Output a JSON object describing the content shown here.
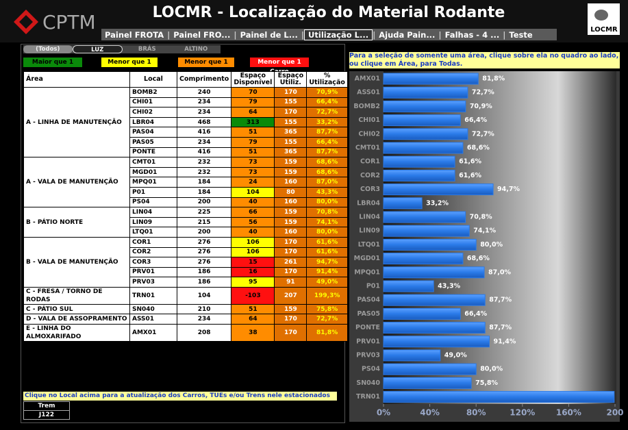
{
  "header": {
    "logo": "CPTM",
    "title": "LOCMR - Localização do Material Rodante",
    "logo_right": "LOCMR"
  },
  "tabs": [
    "Painel FROTA",
    "Painel FRO...",
    "Painel de L...",
    "Utilização L...",
    "Ajuda Pain...",
    "Falhas - 4 ...",
    "Teste"
  ],
  "active_tab": 3,
  "filters": [
    "(Todos)",
    "LUZ",
    "BRÁS",
    "ALTINO"
  ],
  "legend": [
    {
      "label": "Maior que 1 Trem",
      "color": "#0a8a0a"
    },
    {
      "label": "Menor que 1 Trem",
      "color": "#ffff00"
    },
    {
      "label": "Menor que 1 TUE",
      "color": "#ff8c00"
    },
    {
      "label": "Menor que 1 Carro",
      "color": "#ff1010"
    }
  ],
  "table": {
    "columns": [
      "Área",
      "Local",
      "Comprimento",
      "Espaço Disponível",
      "Espaço Utiliz.",
      "% Utilização"
    ],
    "groups": [
      {
        "area": "A - LINHA DE MANUTENÇÃO",
        "rows": [
          {
            "local": "BOMB2",
            "comprimento": 240,
            "disponivel": 70,
            "utilizado": 170,
            "utilizacao": "70,9%",
            "cor": "#ff8c00"
          },
          {
            "local": "CHI01",
            "comprimento": 234,
            "disponivel": 79,
            "utilizado": 155,
            "utilizacao": "66,4%",
            "cor": "#ff8c00"
          },
          {
            "local": "CHI02",
            "comprimento": 234,
            "disponivel": 64,
            "utilizado": 170,
            "utilizacao": "72,7%",
            "cor": "#ff8c00"
          },
          {
            "local": "LBR04",
            "comprimento": 468,
            "disponivel": 313,
            "utilizado": 155,
            "utilizacao": "33,2%",
            "cor": "#0a8a0a"
          },
          {
            "local": "PAS04",
            "comprimento": 416,
            "disponivel": 51,
            "utilizado": 365,
            "utilizacao": "87,7%",
            "cor": "#ff8c00"
          },
          {
            "local": "PAS05",
            "comprimento": 234,
            "disponivel": 79,
            "utilizado": 155,
            "utilizacao": "66,4%",
            "cor": "#ff8c00"
          },
          {
            "local": "PONTE",
            "comprimento": 416,
            "disponivel": 51,
            "utilizado": 365,
            "utilizacao": "87,7%",
            "cor": "#ff8c00"
          }
        ]
      },
      {
        "area": "A - VALA DE MANUTENÇÃO",
        "rows": [
          {
            "local": "CMT01",
            "comprimento": 232,
            "disponivel": 73,
            "utilizado": 159,
            "utilizacao": "68,6%",
            "cor": "#ff8c00"
          },
          {
            "local": "MGD01",
            "comprimento": 232,
            "disponivel": 73,
            "utilizado": 159,
            "utilizacao": "68,6%",
            "cor": "#ff8c00"
          },
          {
            "local": "MPQ01",
            "comprimento": 184,
            "disponivel": 24,
            "utilizado": 160,
            "utilizacao": "87,0%",
            "cor": "#ff8c00"
          },
          {
            "local": "P01",
            "comprimento": 184,
            "disponivel": 104,
            "utilizado": 80,
            "utilizacao": "43,3%",
            "cor": "#ffff00"
          },
          {
            "local": "PS04",
            "comprimento": 200,
            "disponivel": 40,
            "utilizado": 160,
            "utilizacao": "80,0%",
            "cor": "#ff8c00"
          }
        ]
      },
      {
        "area": "B - PÁTIO NORTE",
        "rows": [
          {
            "local": "LIN04",
            "comprimento": 225,
            "disponivel": 66,
            "utilizado": 159,
            "utilizacao": "70,8%",
            "cor": "#ff8c00"
          },
          {
            "local": "LIN09",
            "comprimento": 215,
            "disponivel": 56,
            "utilizado": 159,
            "utilizacao": "74,1%",
            "cor": "#ff8c00"
          },
          {
            "local": "LTQ01",
            "comprimento": 200,
            "disponivel": 40,
            "utilizado": 160,
            "utilizacao": "80,0%",
            "cor": "#ff8c00"
          }
        ]
      },
      {
        "area": "B - VALA DE MANUTENÇÃO",
        "rows": [
          {
            "local": "COR1",
            "comprimento": 276,
            "disponivel": 106,
            "utilizado": 170,
            "utilizacao": "61,6%",
            "cor": "#ffff00"
          },
          {
            "local": "COR2",
            "comprimento": 276,
            "disponivel": 106,
            "utilizado": 170,
            "utilizacao": "61,6%",
            "cor": "#ffff00"
          },
          {
            "local": "COR3",
            "comprimento": 276,
            "disponivel": 15,
            "utilizado": 261,
            "utilizacao": "94,7%",
            "cor": "#ff1010"
          },
          {
            "local": "PRV01",
            "comprimento": 186,
            "disponivel": 16,
            "utilizado": 170,
            "utilizacao": "91,4%",
            "cor": "#ff1010"
          },
          {
            "local": "PRV03",
            "comprimento": 186,
            "disponivel": 95,
            "utilizado": 91,
            "utilizacao": "49,0%",
            "cor": "#ffff00"
          }
        ]
      },
      {
        "area": "C - FRESA / TORNO DE RODAS",
        "rows": [
          {
            "local": "TRN01",
            "comprimento": 104,
            "disponivel": -103,
            "utilizado": 207,
            "utilizacao": "199,3%",
            "cor": "#ff1010"
          }
        ]
      },
      {
        "area": "C - PÁTIO SUL",
        "rows": [
          {
            "local": "SN040",
            "comprimento": 210,
            "disponivel": 51,
            "utilizado": 159,
            "utilizacao": "75,8%",
            "cor": "#ff8c00"
          }
        ]
      },
      {
        "area": "D - VALA DE ASSOPRAMENTO",
        "rows": [
          {
            "local": "ASS01",
            "comprimento": 234,
            "disponivel": 64,
            "utilizado": 170,
            "utilizacao": "72,7%",
            "cor": "#ff8c00"
          }
        ]
      },
      {
        "area": "E - LINHA DO ALMOXARIFADO",
        "rows": [
          {
            "local": "AMX01",
            "comprimento": 208,
            "disponivel": 38,
            "utilizado": 170,
            "utilizacao": "81,8%",
            "cor": "#ff8c00"
          }
        ]
      }
    ]
  },
  "footer": {
    "note": "Clique no Local acima para a atualização dos Carros, TUEs e/ou Trens nele estacionados",
    "trem_header": "Trem",
    "trem": "J122"
  },
  "chart_note": "Para a seleção de somente uma área, clique sobre ela no quadro ao lado, ou clique em Área, para Todas.",
  "chart_data": {
    "type": "bar",
    "orientation": "horizontal",
    "color": "#2a7ae8",
    "categories": [
      "AMX01",
      "ASS01",
      "BOMB2",
      "CHI01",
      "CHI02",
      "CMT01",
      "COR1",
      "COR2",
      "COR3",
      "LBR04",
      "LIN04",
      "LIN09",
      "LTQ01",
      "MGD01",
      "MPQ01",
      "P01",
      "PAS04",
      "PAS05",
      "PONTE",
      "PRV01",
      "PRV03",
      "PS04",
      "SN040",
      "TRN01"
    ],
    "values": [
      81.8,
      72.7,
      70.9,
      66.4,
      72.7,
      68.6,
      61.6,
      61.6,
      94.7,
      33.2,
      70.8,
      74.1,
      80.0,
      68.6,
      87.0,
      43.3,
      87.7,
      66.4,
      87.7,
      91.4,
      49.0,
      80.0,
      75.8,
      199.3
    ],
    "value_labels": [
      "81,8%",
      "72,7%",
      "70,9%",
      "66,4%",
      "72,7%",
      "68,6%",
      "61,6%",
      "61,6%",
      "94,7%",
      "33,2%",
      "70,8%",
      "74,1%",
      "80,0%",
      "68,6%",
      "87,0%",
      "43,3%",
      "87,7%",
      "66,4%",
      "87,7%",
      "91,4%",
      "49,0%",
      "80,0%",
      "75,8%",
      null
    ],
    "xlim": [
      0,
      200
    ],
    "xticks": [
      {
        "value": 0,
        "label": "0%"
      },
      {
        "value": 40,
        "label": "40%"
      },
      {
        "value": 80,
        "label": "80%"
      },
      {
        "value": 120,
        "label": "120%"
      },
      {
        "value": 160,
        "label": "160%"
      },
      200
    ]
  }
}
